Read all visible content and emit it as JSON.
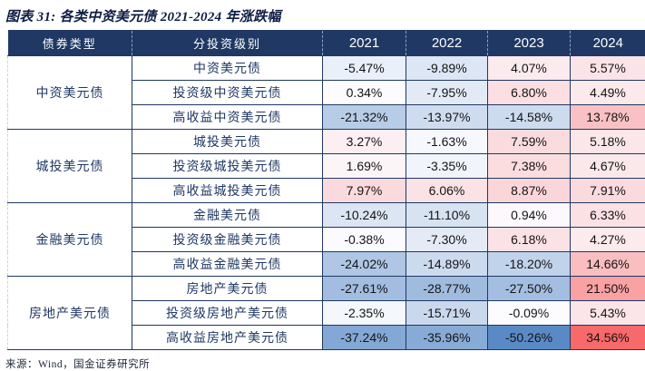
{
  "title": "图表 31: 各类中资美元债 2021-2024 年涨跌幅",
  "source_note": "来源：Wind，国金证券研究所",
  "colors": {
    "header_bg": "#1F3864",
    "table_border": "#1F3864",
    "title_text": "#0e1d45",
    "cn_text": "#1F3864"
  },
  "chart_data": {
    "type": "table",
    "title": "图表 31: 各类中资美元债 2021-2024 年涨跌幅",
    "columns": [
      "债券类型",
      "分投资级别",
      "2021",
      "2022",
      "2023",
      "2024"
    ],
    "years": [
      "2021",
      "2022",
      "2023",
      "2024"
    ],
    "value_suffix": "%",
    "color_scale": {
      "style": "3-color heatmap on cell background",
      "negative": "#5A8AC6",
      "neutral": "#FCFCFF",
      "positive": "#F8696B",
      "domain_min": -50.26,
      "domain_mid": 0,
      "domain_max": 34.56
    },
    "groups": [
      {
        "type": "中资美元债",
        "rows": [
          {
            "label": "中资美元债",
            "values": [
              -5.47,
              -9.89,
              4.07,
              5.57
            ]
          },
          {
            "label": "投资级中资美元债",
            "values": [
              0.34,
              -7.95,
              6.8,
              4.49
            ]
          },
          {
            "label": "高收益中资美元债",
            "values": [
              -21.32,
              -13.97,
              -14.58,
              13.78
            ]
          }
        ]
      },
      {
        "type": "城投美元债",
        "rows": [
          {
            "label": "城投美元债",
            "values": [
              3.27,
              -1.63,
              7.59,
              5.18
            ]
          },
          {
            "label": "投资级城投美元债",
            "values": [
              1.69,
              -3.35,
              7.38,
              4.67
            ]
          },
          {
            "label": "高收益城投美元债",
            "values": [
              7.97,
              6.06,
              8.87,
              7.91
            ]
          }
        ]
      },
      {
        "type": "金融美元债",
        "rows": [
          {
            "label": "金融美元债",
            "values": [
              -10.24,
              -11.1,
              0.94,
              6.33
            ]
          },
          {
            "label": "投资级金融美元债",
            "values": [
              -0.38,
              -7.3,
              6.18,
              4.27
            ]
          },
          {
            "label": "高收益金融美元债",
            "values": [
              -24.02,
              -14.89,
              -18.2,
              14.66
            ]
          }
        ]
      },
      {
        "type": "房地产美元债",
        "rows": [
          {
            "label": "房地产美元债",
            "values": [
              -27.61,
              -28.77,
              -27.5,
              21.5
            ]
          },
          {
            "label": "投资级房地产美元债",
            "values": [
              -2.35,
              -15.71,
              -0.09,
              5.43
            ]
          },
          {
            "label": "高收益房地产美元债",
            "values": [
              -37.24,
              -35.96,
              -50.26,
              34.56
            ]
          }
        ]
      }
    ]
  }
}
